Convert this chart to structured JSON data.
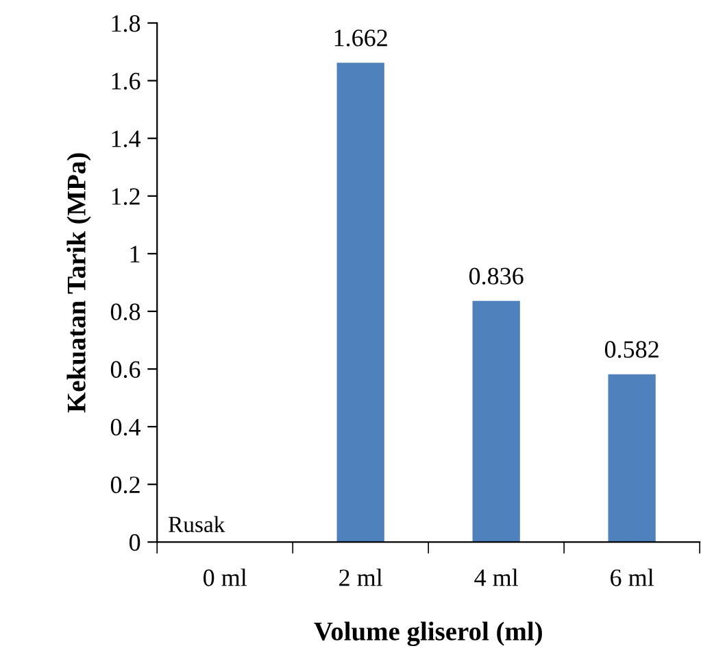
{
  "chart_data": {
    "type": "bar",
    "xlabel": "Volume gliserol (ml)",
    "ylabel": "Kekuatan Tarik (MPa)",
    "categories": [
      "0 ml",
      "2 ml",
      "4 ml",
      "6 ml"
    ],
    "values": [
      null,
      1.662,
      0.836,
      0.582
    ],
    "color": "#4f81bd",
    "ylim": [
      0,
      1.8
    ],
    "yticks": [
      0,
      0.2,
      0.4,
      0.6,
      0.8,
      1,
      1.2,
      1.4,
      1.6,
      1.8
    ],
    "data_labels": true,
    "grid": false,
    "legend": false,
    "annotations": [
      "Rusak"
    ]
  }
}
